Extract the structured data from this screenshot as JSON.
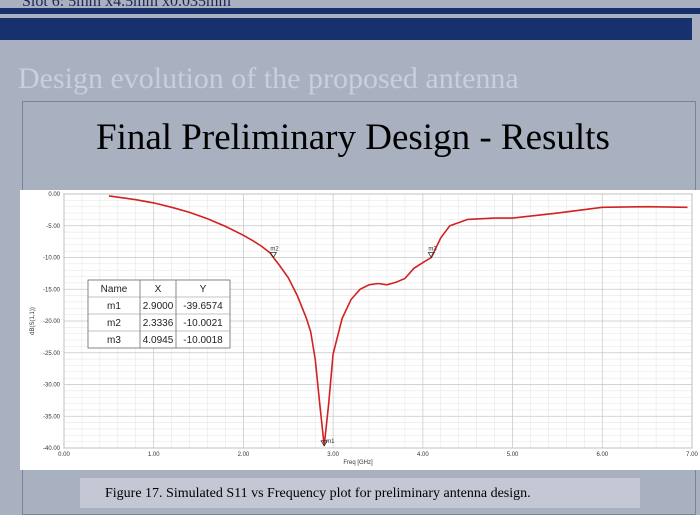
{
  "slide": {
    "top_line": "Slot 6: 5mm x4.5mm x0.035mm",
    "heading": "Design evolution of the proposed antenna",
    "subtitle": "Final Preliminary Design - Results",
    "caption": "Figure 17. Simulated S11 vs Frequency plot for preliminary antenna design."
  },
  "colors": {
    "band": "#17306e",
    "curve": "#d42020",
    "background": "#a9b0c0"
  },
  "chart_data": {
    "type": "line",
    "xlabel": "Freq [GHz]",
    "ylabel": "dB(S(1,1))",
    "xlim": [
      0,
      7
    ],
    "ylim": [
      -40,
      0
    ],
    "x_ticks": [
      "0.00",
      "1.00",
      "2.00",
      "3.00",
      "4.00",
      "5.00",
      "6.00",
      "7.00"
    ],
    "y_ticks": [
      "0.00",
      "-5.00",
      "-10.00",
      "-15.00",
      "-20.00",
      "-25.00",
      "-30.00",
      "-35.00",
      "-40.00"
    ],
    "grid": true,
    "series": [
      {
        "x": [
          0.5,
          0.8,
          1.0,
          1.2,
          1.4,
          1.6,
          1.8,
          2.0,
          2.1,
          2.2,
          2.3,
          2.3336,
          2.4,
          2.5,
          2.6,
          2.7,
          2.75,
          2.8,
          2.85,
          2.9,
          2.95,
          3.0,
          3.1,
          3.2,
          3.3,
          3.4,
          3.5,
          3.6,
          3.7,
          3.8,
          3.9,
          4.0,
          4.0945,
          4.2,
          4.3,
          4.5,
          4.8,
          5.0,
          5.5,
          6.0,
          6.5,
          6.95
        ],
        "y": [
          -0.3,
          -0.9,
          -1.4,
          -2.1,
          -2.9,
          -3.9,
          -5.1,
          -6.5,
          -7.3,
          -8.2,
          -9.3,
          -10.0021,
          -11.2,
          -13.2,
          -16.0,
          -19.5,
          -21.7,
          -26.0,
          -33.0,
          -39.6574,
          -33.0,
          -25.2,
          -19.6,
          -16.6,
          -15.0,
          -14.3,
          -14.1,
          -14.3,
          -13.9,
          -13.3,
          -11.7,
          -10.8,
          -10.0018,
          -6.9,
          -5.0,
          -4.0,
          -3.8,
          -3.8,
          -3.0,
          -2.1,
          -2.0,
          -2.1
        ]
      }
    ],
    "markers": [
      {
        "name": "m1",
        "x": 2.9,
        "y": -39.6574
      },
      {
        "name": "m2",
        "x": 2.3336,
        "y": -10.0021
      },
      {
        "name": "m3",
        "x": 4.0945,
        "y": -10.0018
      }
    ],
    "marker_table": {
      "headers": [
        "Name",
        "X",
        "Y"
      ],
      "rows": [
        [
          "m1",
          "2.9000",
          "-39.6574"
        ],
        [
          "m2",
          "2.3336",
          "-10.0021"
        ],
        [
          "m3",
          "4.0945",
          "-10.0018"
        ]
      ]
    }
  }
}
